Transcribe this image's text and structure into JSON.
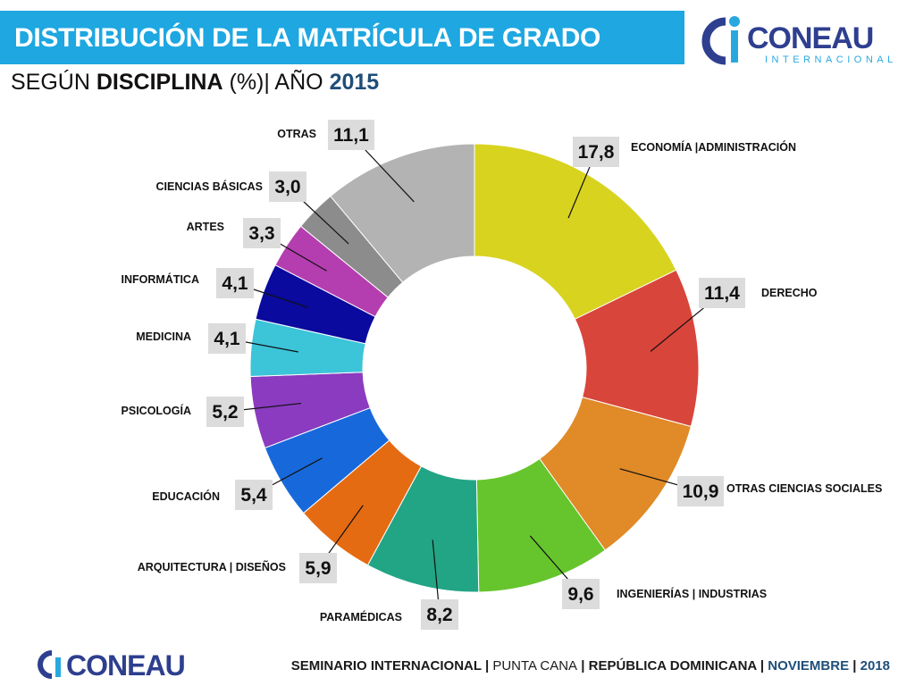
{
  "header": {
    "title": "DISTRIBUCIÓN DE LA MATRÍCULA DE GRADO",
    "subtitle_pre": "SEGÚN ",
    "subtitle_bold": "DISCIPLINA",
    "subtitle_mid": " (%)| AÑO ",
    "subtitle_year": "2015"
  },
  "logo_top": {
    "name": "CONEAU",
    "sub": "INTERNACIONAL"
  },
  "logo_bottom": {
    "name": "CONEAU"
  },
  "footer": {
    "event": "SEMINARIO INTERNACIONAL",
    "sep1": " | ",
    "place": "PUNTA CANA",
    "sep2": " | ",
    "country": "REPÚBLICA DOMINICANA",
    "sep3": " | ",
    "month": "NOVIEMBRE",
    "sep4": " | ",
    "year": "2018"
  },
  "colors": {
    "title_bar": "#1ea7e1",
    "accent_dark_blue": "#1f4e79",
    "logo_blue": "#2e3f8f",
    "logo_cyan": "#29a8e0"
  },
  "chart_data": {
    "type": "pie",
    "donut": true,
    "value_unit": "%",
    "start": "top, clockwise",
    "legend": "none; labels with leader lines",
    "slices": [
      {
        "label": "ECONOMÍA |ADMINISTRACIÓN",
        "value": 17.8,
        "display": "17,8",
        "color": "#d8d31f"
      },
      {
        "label": "DERECHO",
        "value": 11.4,
        "display": "11,4",
        "color": "#d8453a"
      },
      {
        "label": "OTRAS CIENCIAS SOCIALES",
        "value": 10.9,
        "display": "10,9",
        "color": "#e08a28"
      },
      {
        "label": "INGENIERÍAS | INDUSTRIAS",
        "value": 9.6,
        "display": "9,6",
        "color": "#66c52c"
      },
      {
        "label": "PARAMÉDICAS",
        "value": 8.2,
        "display": "8,2",
        "color": "#22a584"
      },
      {
        "label": "ARQUITECTURA | DISEÑOS",
        "value": 5.9,
        "display": "5,9",
        "color": "#e56b12"
      },
      {
        "label": "EDUCACIÓN",
        "value": 5.4,
        "display": "5,4",
        "color": "#1769db"
      },
      {
        "label": "PSICOLOGÍA",
        "value": 5.2,
        "display": "5,2",
        "color": "#8a3bbf"
      },
      {
        "label": "MEDICINA",
        "value": 4.1,
        "display": "4,1",
        "color": "#3cc4d9"
      },
      {
        "label": "INFORMÁTICA",
        "value": 4.1,
        "display": "4,1",
        "color": "#0a0a9e"
      },
      {
        "label": "ARTES",
        "value": 3.3,
        "display": "3,3",
        "color": "#b43eaf"
      },
      {
        "label": "CIENCIAS BÁSICAS",
        "value": 3.0,
        "display": "3,0",
        "color": "#8c8c8c"
      },
      {
        "label": "OTRAS",
        "value": 11.1,
        "display": "11,1",
        "color": "#b3b3b3"
      }
    ]
  }
}
